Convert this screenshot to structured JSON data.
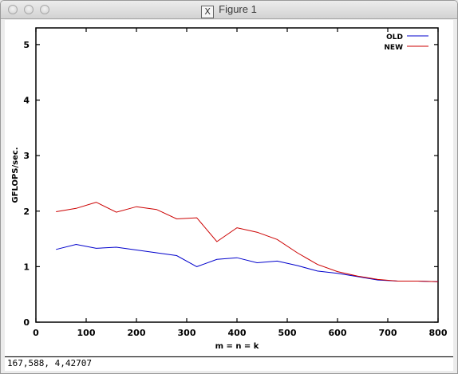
{
  "window": {
    "title": "Figure 1",
    "icon": "x11-icon"
  },
  "status": {
    "coords": "167,588,  4,42707"
  },
  "chart_data": {
    "type": "line",
    "xlabel": "m = n = k",
    "ylabel": "GFLOPS/sec.",
    "xlim": [
      0,
      800
    ],
    "ylim": [
      0,
      5.3
    ],
    "xticks": [
      0,
      100,
      200,
      300,
      400,
      500,
      600,
      700,
      800
    ],
    "yticks": [
      0,
      1,
      2,
      3,
      4,
      5
    ],
    "grid": false,
    "legend_position": "top-right",
    "series": [
      {
        "name": "OLD",
        "color": "#0000cc",
        "x": [
          40,
          80,
          120,
          160,
          200,
          240,
          280,
          320,
          360,
          400,
          440,
          480,
          520,
          560,
          600,
          640,
          680,
          720,
          760,
          800
        ],
        "y": [
          1.31,
          1.4,
          1.33,
          1.35,
          1.3,
          1.25,
          1.2,
          1.0,
          1.13,
          1.16,
          1.07,
          1.1,
          1.02,
          0.92,
          0.88,
          0.82,
          0.76,
          0.74,
          0.74,
          0.73
        ]
      },
      {
        "name": "NEW",
        "color": "#cc0000",
        "x": [
          40,
          80,
          120,
          160,
          200,
          240,
          280,
          320,
          360,
          400,
          440,
          480,
          520,
          560,
          600,
          640,
          680,
          720,
          760,
          800
        ],
        "y": [
          1.99,
          2.05,
          2.16,
          1.98,
          2.08,
          2.03,
          1.86,
          1.88,
          1.45,
          1.7,
          1.62,
          1.49,
          1.25,
          1.04,
          0.91,
          0.83,
          0.77,
          0.74,
          0.74,
          0.73
        ]
      }
    ]
  }
}
